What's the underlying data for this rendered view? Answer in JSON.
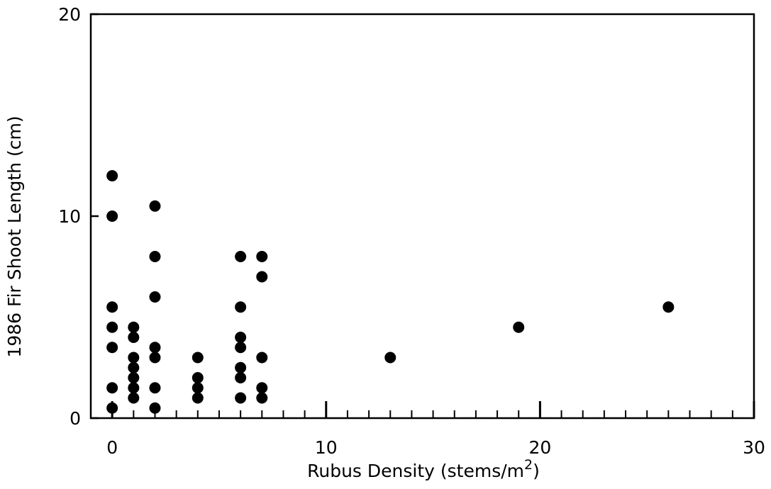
{
  "chart_data": {
    "type": "scatter",
    "title": "",
    "xlabel": "Rubus Density (stems/m",
    "xlabel_superscript": "2",
    "xlabel_suffix": ")",
    "ylabel": "1986 Fir Shoot Length (cm)",
    "xlim": [
      -1,
      30
    ],
    "ylim": [
      0,
      20
    ],
    "x_ticks": [
      0,
      10,
      20,
      30
    ],
    "x_tick_labels": [
      "0",
      "10",
      "20",
      "30"
    ],
    "y_ticks": [
      0,
      10,
      20
    ],
    "y_tick_labels": [
      "0",
      "10",
      "20"
    ],
    "grid": false,
    "legend": "none",
    "marker_color": "#000000",
    "points": [
      {
        "x": 0,
        "y": 12
      },
      {
        "x": 0,
        "y": 10
      },
      {
        "x": 0,
        "y": 5.5
      },
      {
        "x": 0,
        "y": 4.5
      },
      {
        "x": 0,
        "y": 3.5
      },
      {
        "x": 0,
        "y": 1.5
      },
      {
        "x": 0,
        "y": 0.5
      },
      {
        "x": 1,
        "y": 4.5
      },
      {
        "x": 1,
        "y": 4
      },
      {
        "x": 1,
        "y": 3
      },
      {
        "x": 1,
        "y": 2.5
      },
      {
        "x": 1,
        "y": 2
      },
      {
        "x": 1,
        "y": 1.5
      },
      {
        "x": 1,
        "y": 1
      },
      {
        "x": 2,
        "y": 10.5
      },
      {
        "x": 2,
        "y": 8
      },
      {
        "x": 2,
        "y": 6
      },
      {
        "x": 2,
        "y": 3.5
      },
      {
        "x": 2,
        "y": 3
      },
      {
        "x": 2,
        "y": 1.5
      },
      {
        "x": 2,
        "y": 0.5
      },
      {
        "x": 4,
        "y": 3
      },
      {
        "x": 4,
        "y": 2
      },
      {
        "x": 4,
        "y": 1.5
      },
      {
        "x": 4,
        "y": 1
      },
      {
        "x": 6,
        "y": 8
      },
      {
        "x": 6,
        "y": 5.5
      },
      {
        "x": 6,
        "y": 4
      },
      {
        "x": 6,
        "y": 3.5
      },
      {
        "x": 6,
        "y": 2.5
      },
      {
        "x": 6,
        "y": 2
      },
      {
        "x": 6,
        "y": 1
      },
      {
        "x": 7,
        "y": 8
      },
      {
        "x": 7,
        "y": 7
      },
      {
        "x": 7,
        "y": 3
      },
      {
        "x": 7,
        "y": 1.5
      },
      {
        "x": 7,
        "y": 1
      },
      {
        "x": 13,
        "y": 3
      },
      {
        "x": 19,
        "y": 4.5
      },
      {
        "x": 26,
        "y": 5.5
      }
    ]
  }
}
